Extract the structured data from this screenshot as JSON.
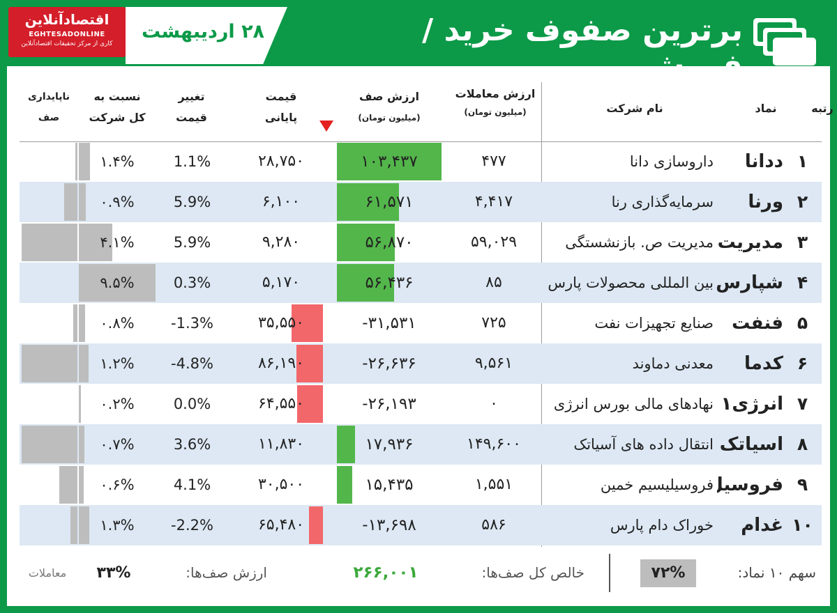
{
  "header": {
    "title": "برترین صفوف خرید / فروش",
    "date": "۲۸ اردیبهشت",
    "logo": {
      "name_fa": "اقتصادآنلاین",
      "name_en": "EGHTESADONLINE",
      "tagline": "کاری از مرکز تحقیقات اقتصادآنلاین"
    },
    "icon": "stacked-cards-icon"
  },
  "columns": {
    "rank": "رتبه",
    "symbol": "نماد",
    "company": "نام شرکت",
    "trade_value_1": "ارزش معاملات",
    "trade_value_2": "(میلیون تومان)",
    "queue_value_1": "ارزش صف",
    "queue_value_2": "(میلیون تومان)",
    "close_price_1": "قیمت",
    "close_price_2": "پایانی",
    "price_change_1": "تغییر",
    "price_change_2": "قیمت",
    "ratio_1": "نسبت به",
    "ratio_2": "کل شرکت",
    "instability_1": "ناپایداری",
    "instability_2": "صف",
    "sort_icon": "sort-down-icon"
  },
  "colors": {
    "brand_green": "#0c9a48",
    "positive_bar": "#53b64b",
    "negative_bar": "#f2676a",
    "grey_bar": "#bdbdbd",
    "alt_row": "#dde8f4",
    "logo_red": "#d41e2a"
  },
  "rows": [
    {
      "rank": "۱",
      "symbol": "ددانا",
      "company": "داروسازی دانا",
      "trade_value": "۴۷۷",
      "queue_value": "۱۰۳,۴۳۷",
      "queue_num": 103437,
      "close_price": "۲۸,۷۵۰",
      "price_change": "1.1%",
      "ratio": "۱.۴%",
      "ratio_num": 1.4,
      "instability_num": 0.1
    },
    {
      "rank": "۲",
      "symbol": "ورنا",
      "company": "سرمایه‌گذاری رنا",
      "trade_value": "۴,۴۱۷",
      "queue_value": "۶۱,۵۷۱",
      "queue_num": 61571,
      "close_price": "۶,۱۰۰",
      "price_change": "5.9%",
      "ratio": "۰.۹%",
      "ratio_num": 0.9,
      "instability_num": 1.2
    },
    {
      "rank": "۳",
      "symbol": "مدیریت",
      "company": "مدیریت ص. بازنشستگی",
      "trade_value": "۵۹,۰۲۹",
      "queue_value": "۵۶,۸۷۰",
      "queue_num": 56870,
      "close_price": "۹,۲۸۰",
      "price_change": "5.9%",
      "ratio": "۴.۱%",
      "ratio_num": 4.1,
      "instability_num": 5.0
    },
    {
      "rank": "۴",
      "symbol": "شپارس",
      "company": "بین المللی محصولات پارس",
      "trade_value": "۸۵",
      "queue_value": "۵۶,۴۳۶",
      "queue_num": 56436,
      "close_price": "۵,۱۷۰",
      "price_change": "0.3%",
      "ratio": "۹.۵%",
      "ratio_num": 9.5,
      "instability_num": 0
    },
    {
      "rank": "۵",
      "symbol": "فنفت",
      "company": "صنایع تجهیزات نفت",
      "trade_value": "۷۲۵",
      "queue_value": "-۳۱,۵۳۱",
      "queue_num": -31531,
      "close_price": "۳۵,۵۵۰",
      "price_change": "-1.3%",
      "ratio": "۰.۸%",
      "ratio_num": 0.8,
      "instability_num": 0.4
    },
    {
      "rank": "۶",
      "symbol": "کدما",
      "company": "معدنی دماوند",
      "trade_value": "۹,۵۶۱",
      "queue_value": "-۲۶,۶۳۶",
      "queue_num": -26636,
      "close_price": "۸۶,۱۹۰",
      "price_change": "-4.8%",
      "ratio": "۱.۲%",
      "ratio_num": 1.2,
      "instability_num": 5.0
    },
    {
      "rank": "۷",
      "symbol": "انرژی۱",
      "company": "نهادهای مالی بورس انرژی",
      "trade_value": "۰",
      "queue_value": "-۲۶,۱۹۳",
      "queue_num": -26193,
      "close_price": "۶۴,۵۵۰",
      "price_change": "0.0%",
      "ratio": "۰.۲%",
      "ratio_num": 0.2,
      "instability_num": 0
    },
    {
      "rank": "۸",
      "symbol": "اسیاتک",
      "company": "انتقال داده های آسیاتک",
      "trade_value": "۱۴۹,۶۰۰",
      "queue_value": "۱۷,۹۳۶",
      "queue_num": 17936,
      "close_price": "۱۱,۸۳۰",
      "price_change": "3.6%",
      "ratio": "۰.۷%",
      "ratio_num": 0.7,
      "instability_num": 5.0
    },
    {
      "rank": "۹",
      "symbol": "فروسیل",
      "company": "فروسیلیسیم خمین",
      "trade_value": "۱,۵۵۱",
      "queue_value": "۱۵,۴۳۵",
      "queue_num": 15435,
      "close_price": "۳۰,۵۰۰",
      "price_change": "4.1%",
      "ratio": "۰.۶%",
      "ratio_num": 0.6,
      "instability_num": 1.6
    },
    {
      "rank": "۱۰",
      "symbol": "غدام",
      "company": "خوراک دام پارس",
      "trade_value": "۵۸۶",
      "queue_value": "-۱۳,۶۹۸",
      "queue_num": -13698,
      "close_price": "۶۵,۴۸۰",
      "price_change": "-2.2%",
      "ratio": "۱.۳%",
      "ratio_num": 1.3,
      "instability_num": 0.6
    }
  ],
  "footer": {
    "share_label": "سهم ۱۰ نماد:",
    "share_value": "۷۲%",
    "net_label": "خالص کل صف‌ها:",
    "net_value": "۲۶۶,۰۰۱",
    "queue_label": "ارزش صف‌ها:",
    "queue_value": "۳۳%",
    "trades_label": "معاملات"
  }
}
